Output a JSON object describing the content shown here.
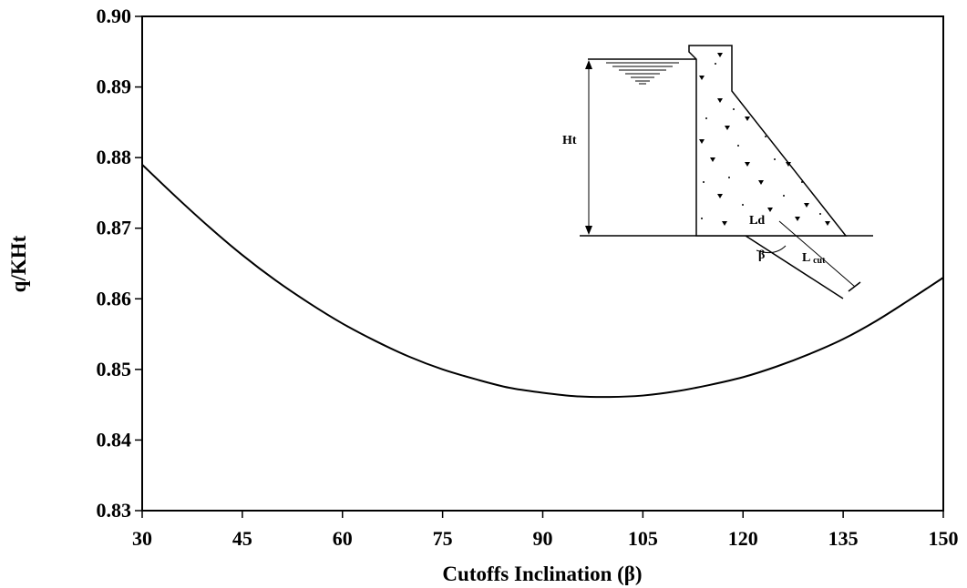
{
  "chart_data": {
    "type": "line",
    "xlabel": "Cutoffs Inclination (β)",
    "ylabel": "q/KHt",
    "xlim": [
      30,
      150
    ],
    "ylim": [
      0.83,
      0.9
    ],
    "xticks": [
      30,
      45,
      60,
      75,
      90,
      105,
      120,
      135,
      150
    ],
    "yticks": [
      "0.83",
      "0.84",
      "0.85",
      "0.86",
      "0.87",
      "0.88",
      "0.89",
      "0.90"
    ],
    "grid": false,
    "series": [
      {
        "x": [
          30,
          35,
          40,
          45,
          50,
          55,
          60,
          65,
          70,
          75,
          80,
          85,
          90,
          95,
          100,
          105,
          110,
          115,
          120,
          125,
          130,
          135,
          140,
          145,
          150
        ],
        "y": [
          0.879,
          0.8745,
          0.8702,
          0.8662,
          0.8626,
          0.8594,
          0.8565,
          0.854,
          0.8518,
          0.85,
          0.8486,
          0.8474,
          0.8467,
          0.8462,
          0.8461,
          0.8463,
          0.8469,
          0.8478,
          0.8489,
          0.8504,
          0.8522,
          0.8543,
          0.8569,
          0.8599,
          0.863
        ]
      }
    ],
    "inset": {
      "labels": {
        "ht": "Ht",
        "ld": "Ld",
        "beta": "β",
        "lcut_main": "L",
        "lcut_sub": "cut"
      }
    }
  }
}
